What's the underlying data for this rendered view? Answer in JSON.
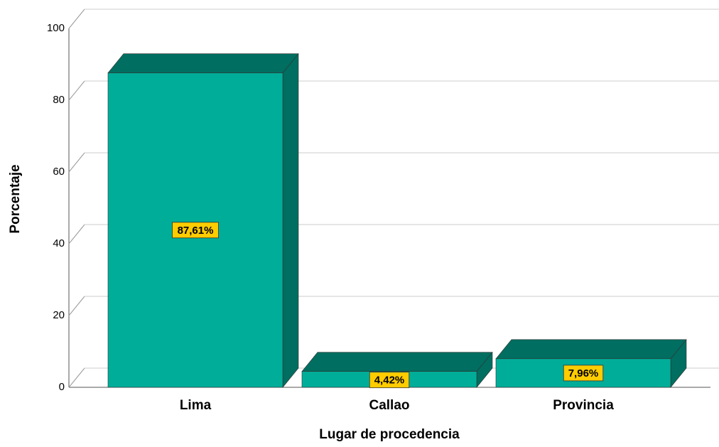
{
  "chart_data": {
    "type": "bar3d",
    "categories": [
      "Lima",
      "Callao",
      "Provincia"
    ],
    "values": [
      87.61,
      4.42,
      7.96
    ],
    "value_labels": [
      "87,61%",
      "4,42%",
      "7,96%"
    ],
    "color": "#00ad98",
    "shade_color": "#006e60",
    "label_color": "#ffcc00",
    "ylim": [
      0,
      100
    ],
    "yticks": [
      0,
      20,
      40,
      60,
      80,
      100
    ],
    "grid": true,
    "xlabel": "Lugar de procedencia",
    "ylabel": "Porcentaje"
  }
}
